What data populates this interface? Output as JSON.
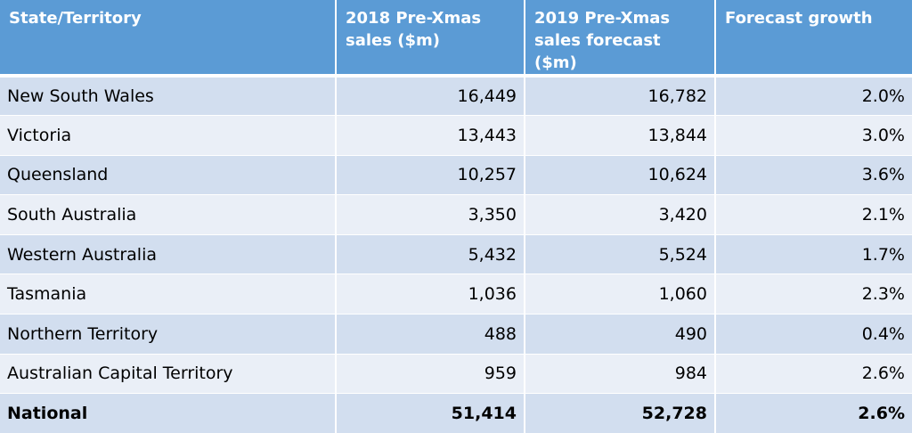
{
  "headers": {
    "state": "State/Territory",
    "sales_2018_line1": "2018 Pre-Xmas",
    "sales_2018_line2": "sales ($m)",
    "sales_2019_line1": "2019 Pre-Xmas",
    "sales_2019_line2": "sales forecast ($m)",
    "growth": "Forecast growth"
  },
  "rows": [
    {
      "name": "New South Wales",
      "sales_2018": "16,449",
      "sales_2019": "16,782",
      "growth": "2.0%"
    },
    {
      "name": "Victoria",
      "sales_2018": "13,443",
      "sales_2019": "13,844",
      "growth": "3.0%"
    },
    {
      "name": "Queensland",
      "sales_2018": "10,257",
      "sales_2019": "10,624",
      "growth": "3.6%"
    },
    {
      "name": "South Australia",
      "sales_2018": "3,350",
      "sales_2019": "3,420",
      "growth": "2.1%"
    },
    {
      "name": "Western Australia",
      "sales_2018": "5,432",
      "sales_2019": "5,524",
      "growth": "1.7%"
    },
    {
      "name": "Tasmania",
      "sales_2018": "1,036",
      "sales_2019": "1,060",
      "growth": "2.3%"
    },
    {
      "name": "Northern Territory",
      "sales_2018": "488",
      "sales_2019": "490",
      "growth": "0.4%"
    },
    {
      "name": "Australian Capital Territory",
      "sales_2018": "959",
      "sales_2019": "984",
      "growth": "2.6%"
    }
  ],
  "total": {
    "name": "National",
    "sales_2018": "51,414",
    "sales_2019": "52,728",
    "growth": "2.6%"
  },
  "colors": {
    "header_bg": "#5b9bd5",
    "row_odd_bg": "#d2deef",
    "row_even_bg": "#eaeff7"
  }
}
